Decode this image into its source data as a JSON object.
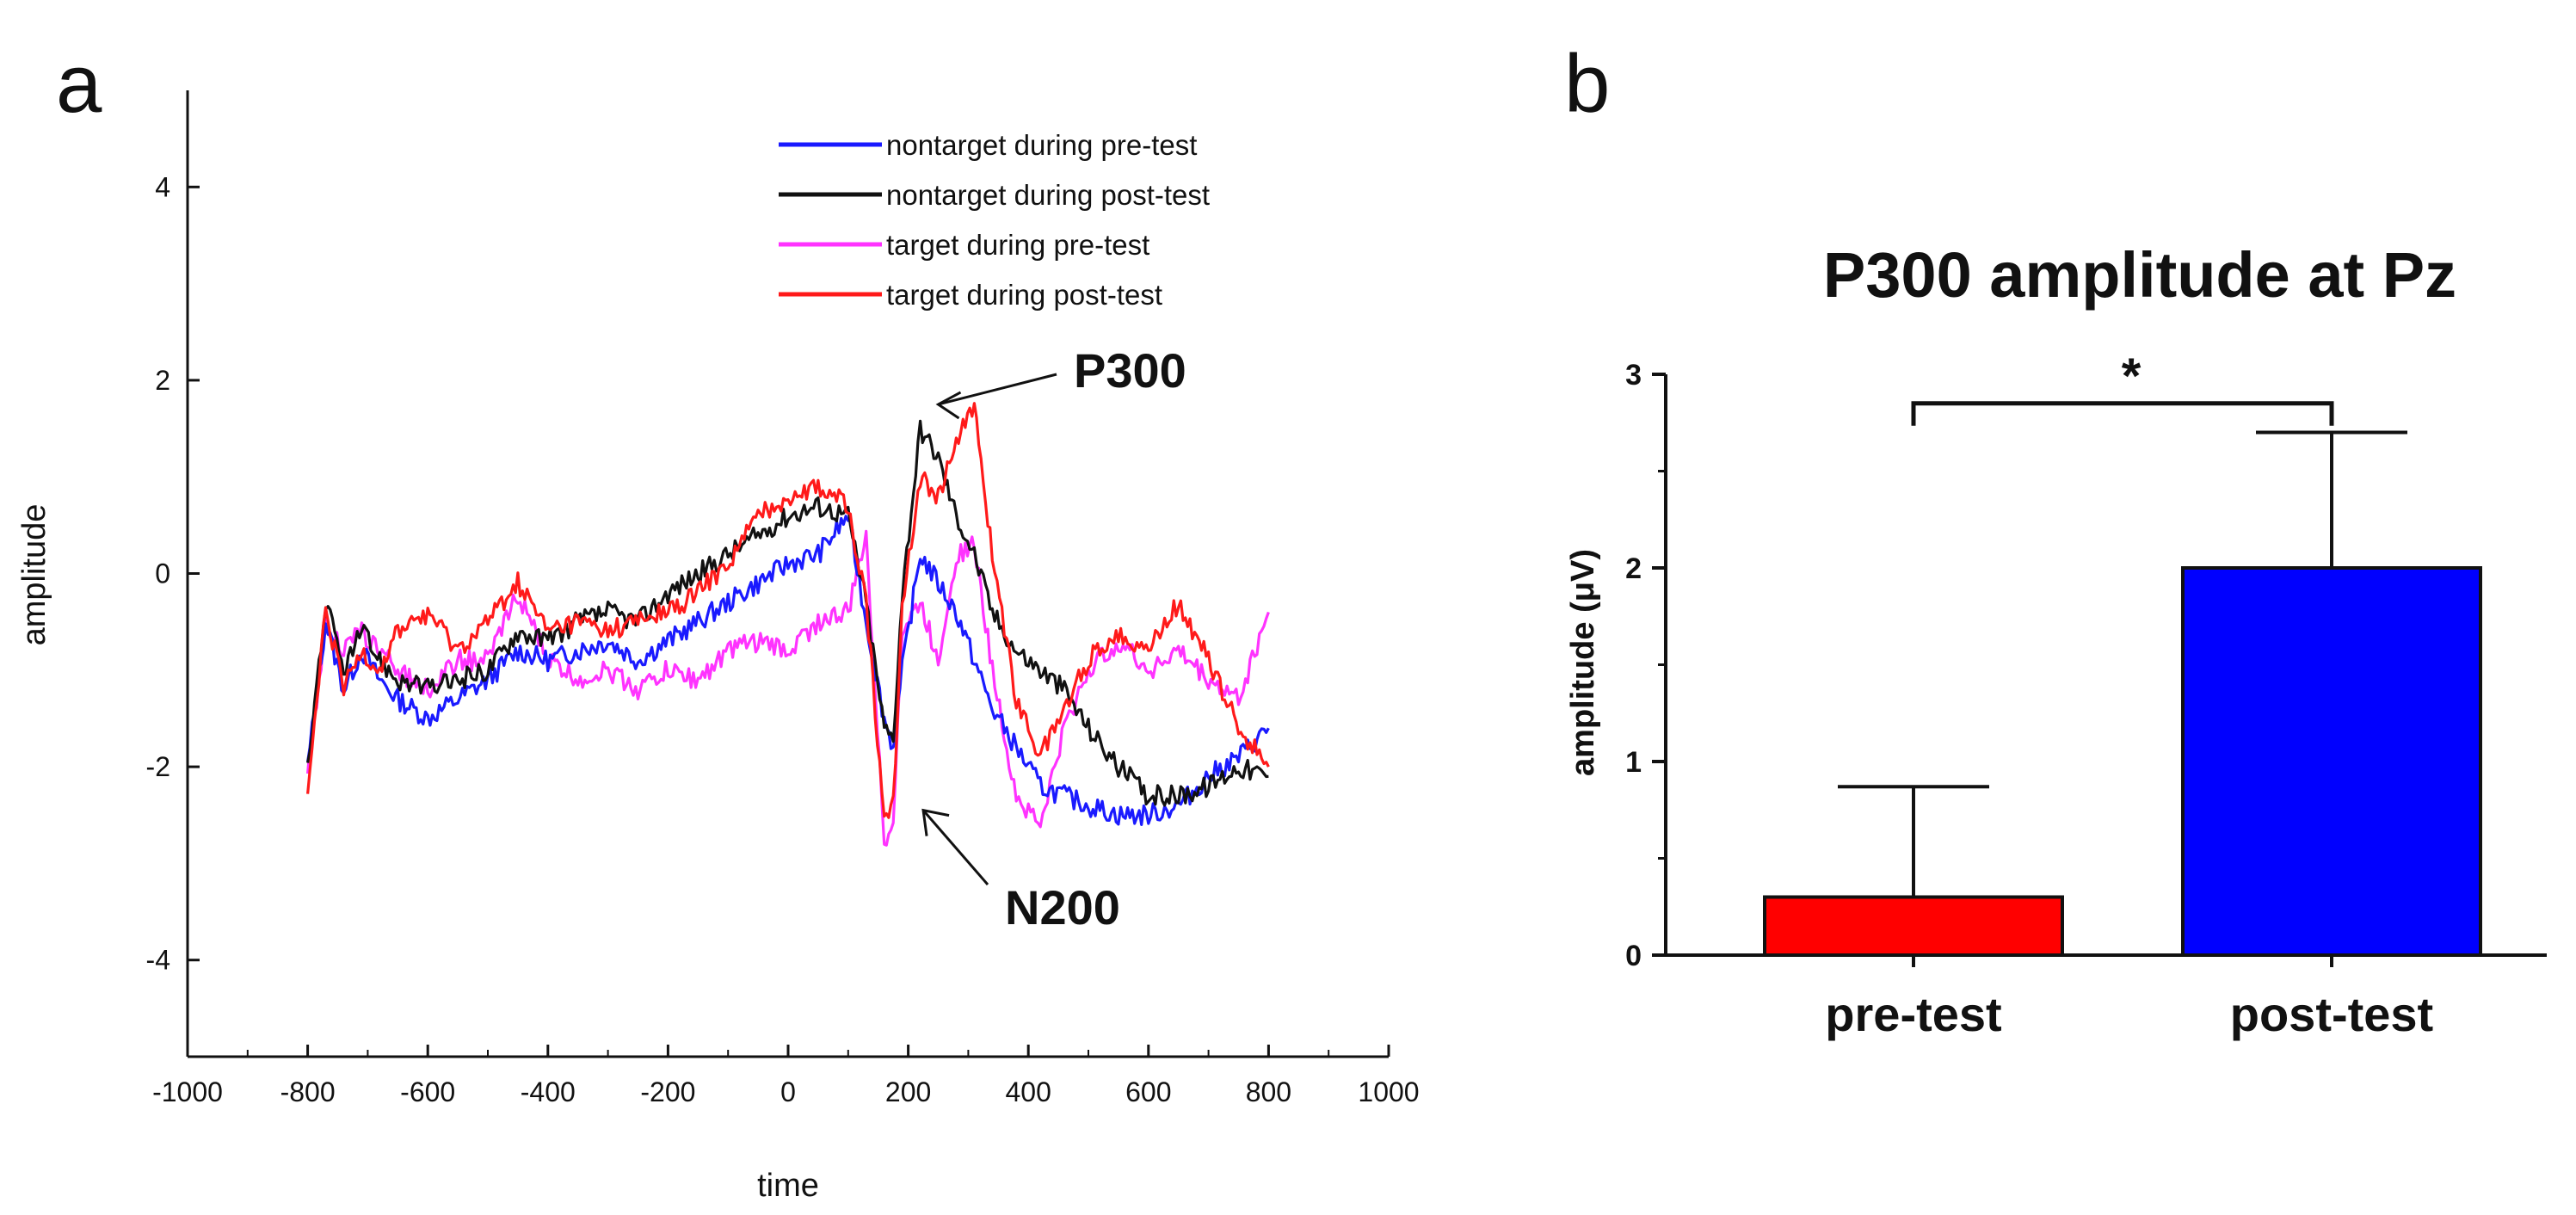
{
  "panel_labels": {
    "a": "a",
    "b": "b"
  },
  "chart_data": [
    {
      "type": "line",
      "panel": "a",
      "title": "",
      "xlabel": "time",
      "ylabel": "amplitude",
      "xlim": [
        -1000,
        1000
      ],
      "ylim": [
        -5,
        5
      ],
      "xticks": [
        -1000,
        -800,
        -600,
        -400,
        -200,
        0,
        200,
        400,
        600,
        800,
        1000
      ],
      "xtick_labels": [
        "-1000",
        "-800",
        "-600",
        "-400",
        "-200",
        "0",
        "200",
        "400",
        "600",
        "800",
        "1000"
      ],
      "yticks": [
        -4,
        -2,
        0,
        2,
        4
      ],
      "ytick_labels": [
        "-4",
        "-2",
        "0",
        "2",
        "4"
      ],
      "legend_position": "top-right",
      "x": [
        -800,
        -770,
        -740,
        -710,
        -680,
        -650,
        -600,
        -550,
        -500,
        -450,
        -400,
        -350,
        -300,
        -250,
        -200,
        -150,
        -100,
        -50,
        0,
        50,
        100,
        130,
        160,
        175,
        190,
        220,
        250,
        280,
        310,
        340,
        380,
        420,
        460,
        500,
        550,
        600,
        650,
        700,
        750,
        800
      ],
      "series": [
        {
          "name": "nontarget during pre-test",
          "color": "#1a1aff",
          "values": [
            -2.0,
            -0.5,
            -1.2,
            -0.8,
            -1.1,
            -1.3,
            -1.5,
            -1.3,
            -1.1,
            -0.8,
            -0.9,
            -0.8,
            -0.7,
            -0.9,
            -0.7,
            -0.5,
            -0.3,
            -0.1,
            0.1,
            0.2,
            0.6,
            -0.5,
            -1.5,
            -1.8,
            -1.0,
            0.2,
            -0.1,
            -0.4,
            -0.9,
            -1.4,
            -1.8,
            -2.2,
            -2.3,
            -2.4,
            -2.5,
            -2.5,
            -2.4,
            -2.1,
            -1.9,
            -1.6
          ]
        },
        {
          "name": "nontarget during post-test",
          "color": "#111111",
          "values": [
            -2.0,
            -0.3,
            -1.0,
            -0.6,
            -0.9,
            -1.1,
            -1.2,
            -1.1,
            -1.0,
            -0.6,
            -0.7,
            -0.5,
            -0.4,
            -0.5,
            -0.2,
            0.0,
            0.2,
            0.4,
            0.6,
            0.7,
            0.6,
            -0.3,
            -1.6,
            -1.7,
            -0.2,
            1.5,
            1.2,
            0.6,
            0.2,
            -0.4,
            -0.8,
            -1.0,
            -1.2,
            -1.6,
            -2.0,
            -2.3,
            -2.3,
            -2.2,
            -2.0,
            -2.1
          ]
        },
        {
          "name": "target during pre-test",
          "color": "#ff33ff",
          "values": [
            -2.1,
            -0.5,
            -0.8,
            -0.6,
            -0.8,
            -1.0,
            -1.2,
            -0.9,
            -0.9,
            -0.2,
            -0.9,
            -1.1,
            -1.0,
            -1.2,
            -1.0,
            -1.1,
            -0.8,
            -0.7,
            -0.8,
            -0.5,
            -0.4,
            0.4,
            -2.8,
            -2.5,
            -0.6,
            -0.3,
            -0.9,
            0.2,
            0.3,
            -1.0,
            -2.3,
            -2.6,
            -1.6,
            -1.0,
            -0.7,
            -1.0,
            -0.8,
            -1.1,
            -1.3,
            -0.4
          ]
        },
        {
          "name": "target during post-test",
          "color": "#ff1a1a",
          "values": [
            -2.3,
            -0.4,
            -1.2,
            -0.8,
            -1.0,
            -0.6,
            -0.4,
            -0.8,
            -0.5,
            -0.1,
            -0.6,
            -0.5,
            -0.6,
            -0.5,
            -0.4,
            -0.2,
            0.1,
            0.6,
            0.8,
            0.9,
            0.7,
            -0.3,
            -2.5,
            -2.4,
            -0.3,
            1.0,
            0.8,
            1.4,
            1.7,
            0.2,
            -1.3,
            -1.9,
            -1.4,
            -0.9,
            -0.6,
            -0.8,
            -0.3,
            -0.9,
            -1.6,
            -2.0
          ]
        }
      ],
      "annotations": [
        {
          "text": "P300",
          "x": 250,
          "y": 1.75
        },
        {
          "text": "N200",
          "x": 225,
          "y": -2.45
        }
      ]
    },
    {
      "type": "bar",
      "panel": "b",
      "title": "P300 amplitude at Pz",
      "xlabel": "",
      "ylabel": "amplitude (μV)",
      "ylim": [
        0,
        3
      ],
      "yticks": [
        0,
        1,
        2,
        3
      ],
      "ytick_labels": [
        "0",
        "1",
        "2",
        "3"
      ],
      "categories": [
        "pre-test",
        "post-test"
      ],
      "values": [
        0.3,
        2.0
      ],
      "error_upper": [
        0.87,
        2.7
      ],
      "colors": [
        "#ff0000",
        "#0000ff"
      ],
      "significance": {
        "label": "*",
        "between": [
          "pre-test",
          "post-test"
        ],
        "y": 2.85
      }
    }
  ]
}
